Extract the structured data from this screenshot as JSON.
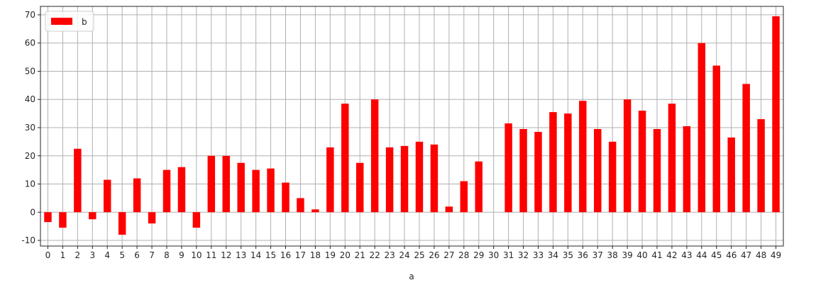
{
  "chart_data": {
    "type": "bar",
    "xlabel": "a",
    "ylabel": "",
    "ylim": [
      -12,
      73
    ],
    "yticks": [
      -10,
      0,
      10,
      20,
      30,
      40,
      50,
      60,
      70
    ],
    "grid": true,
    "legend_position": "upper-left",
    "bar_color": "#ff0000",
    "categories": [
      "0",
      "1",
      "2",
      "3",
      "4",
      "5",
      "6",
      "7",
      "8",
      "9",
      "10",
      "11",
      "12",
      "13",
      "14",
      "15",
      "16",
      "17",
      "18",
      "19",
      "20",
      "21",
      "22",
      "23",
      "24",
      "25",
      "26",
      "27",
      "28",
      "29",
      "30",
      "31",
      "32",
      "33",
      "34",
      "35",
      "36",
      "37",
      "38",
      "39",
      "40",
      "41",
      "42",
      "43",
      "44",
      "45",
      "46",
      "47",
      "48",
      "49"
    ],
    "series": [
      {
        "name": "b",
        "values": [
          -3.5,
          -5.5,
          22.5,
          -2.5,
          11.5,
          -8,
          12,
          -4,
          15,
          16,
          -5.5,
          20,
          20,
          17.5,
          15,
          15.5,
          10.5,
          5,
          1,
          23,
          38.5,
          17.5,
          40,
          23,
          23.5,
          25,
          24,
          2,
          11,
          18,
          0,
          31.5,
          29.5,
          28.5,
          35.5,
          35,
          39.5,
          29.5,
          25,
          40,
          36,
          29.5,
          38.5,
          30.5,
          60,
          52,
          26.5,
          45.5,
          33,
          69.5
        ]
      }
    ]
  }
}
